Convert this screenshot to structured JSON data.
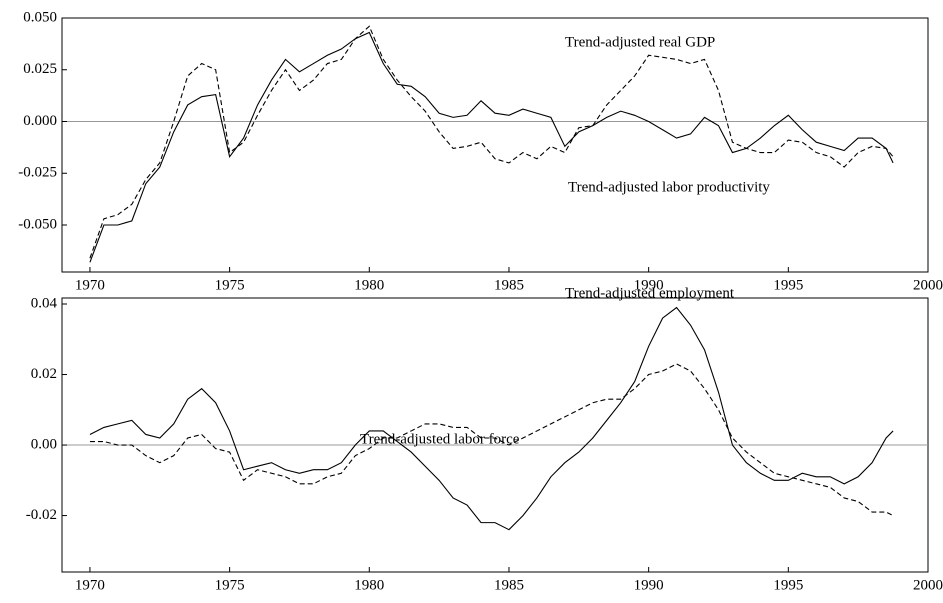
{
  "chart_data": [
    {
      "type": "line",
      "x": [
        1970,
        1970.5,
        1971,
        1971.5,
        1972,
        1972.5,
        1973,
        1973.5,
        1974,
        1974.5,
        1975,
        1975.5,
        1976,
        1976.5,
        1977,
        1977.5,
        1978,
        1978.5,
        1979,
        1979.5,
        1980,
        1980.5,
        1981,
        1981.5,
        1982,
        1982.5,
        1983,
        1983.5,
        1984,
        1984.5,
        1985,
        1985.5,
        1986,
        1986.5,
        1987,
        1987.5,
        1988,
        1988.5,
        1989,
        1989.5,
        1990,
        1990.5,
        1991,
        1991.5,
        1992,
        1992.5,
        1993,
        1993.5,
        1994,
        1994.5,
        1995,
        1995.5,
        1996,
        1996.5,
        1997,
        1997.5,
        1998,
        1998.5,
        1998.75
      ],
      "series": [
        {
          "name": "Trend-adjusted real GDP",
          "color": "#000000",
          "line_style": "dashed",
          "values": [
            -0.066,
            -0.047,
            -0.045,
            -0.04,
            -0.028,
            -0.02,
            0.0,
            0.022,
            0.028,
            0.025,
            -0.015,
            -0.01,
            0.003,
            0.015,
            0.025,
            0.015,
            0.02,
            0.028,
            0.03,
            0.04,
            0.046,
            0.03,
            0.02,
            0.012,
            0.005,
            -0.005,
            -0.013,
            -0.012,
            -0.01,
            -0.018,
            -0.02,
            -0.015,
            -0.018,
            -0.012,
            -0.015,
            -0.003,
            -0.002,
            0.008,
            0.015,
            0.022,
            0.032,
            0.031,
            0.03,
            0.028,
            0.03,
            0.015,
            -0.01,
            -0.013,
            -0.015,
            -0.015,
            -0.009,
            -0.01,
            -0.015,
            -0.017,
            -0.022,
            -0.015,
            -0.012,
            -0.013,
            -0.017
          ]
        },
        {
          "name": "Trend-adjusted labor productivity",
          "color": "#000000",
          "line_style": "solid",
          "values": [
            -0.068,
            -0.05,
            -0.05,
            -0.048,
            -0.03,
            -0.022,
            -0.005,
            0.008,
            0.012,
            0.013,
            -0.017,
            -0.008,
            0.008,
            0.02,
            0.03,
            0.024,
            0.028,
            0.032,
            0.035,
            0.04,
            0.043,
            0.028,
            0.018,
            0.017,
            0.012,
            0.004,
            0.002,
            0.003,
            0.01,
            0.004,
            0.003,
            0.006,
            0.004,
            0.002,
            -0.012,
            -0.005,
            -0.002,
            0.002,
            0.005,
            0.003,
            0.0,
            -0.004,
            -0.008,
            -0.006,
            0.002,
            -0.002,
            -0.015,
            -0.013,
            -0.008,
            -0.002,
            0.003,
            -0.004,
            -0.01,
            -0.012,
            -0.014,
            -0.008,
            -0.008,
            -0.013,
            -0.02
          ]
        }
      ],
      "xlim": [
        1969,
        2000
      ],
      "xticks": [
        1970,
        1975,
        1980,
        1985,
        1990,
        1995,
        2000
      ],
      "ylim": [
        -0.0727,
        0.05
      ],
      "yticks": [
        {
          "value": 0.05,
          "label": "0.050"
        },
        0.025,
        {
          "value": 0,
          "label": "0.000"
        },
        -0.025,
        {
          "value": -0.05,
          "label": "-0.050"
        }
      ],
      "zero_line": true
    },
    {
      "type": "line",
      "x": [
        1970,
        1970.5,
        1971,
        1971.5,
        1972,
        1972.5,
        1973,
        1973.5,
        1974,
        1974.5,
        1975,
        1975.5,
        1976,
        1976.5,
        1977,
        1977.5,
        1978,
        1978.5,
        1979,
        1979.5,
        1980,
        1980.5,
        1981,
        1981.5,
        1982,
        1982.5,
        1983,
        1983.5,
        1984,
        1984.5,
        1985,
        1985.5,
        1986,
        1986.5,
        1987,
        1987.5,
        1988,
        1988.5,
        1989,
        1989.5,
        1990,
        1990.5,
        1991,
        1991.5,
        1992,
        1992.5,
        1993,
        1993.5,
        1994,
        1994.5,
        1995,
        1995.5,
        1996,
        1996.5,
        1997,
        1997.5,
        1998,
        1998.5,
        1998.75
      ],
      "series": [
        {
          "name": "Trend-adjusted employment",
          "color": "#000000",
          "line_style": "solid",
          "values": [
            0.003,
            0.005,
            0.006,
            0.007,
            0.003,
            0.002,
            0.006,
            0.013,
            0.016,
            0.012,
            0.004,
            -0.007,
            -0.006,
            -0.005,
            -0.007,
            -0.008,
            -0.007,
            -0.007,
            -0.005,
            0.0,
            0.004,
            0.004,
            0.001,
            -0.002,
            -0.006,
            -0.01,
            -0.015,
            -0.017,
            -0.022,
            -0.022,
            -0.024,
            -0.02,
            -0.015,
            -0.009,
            -0.005,
            -0.002,
            0.002,
            0.007,
            0.012,
            0.018,
            0.028,
            0.036,
            0.039,
            0.034,
            0.027,
            0.015,
            0.0,
            -0.005,
            -0.008,
            -0.01,
            -0.01,
            -0.008,
            -0.009,
            -0.009,
            -0.011,
            -0.009,
            -0.005,
            0.002,
            0.004
          ]
        },
        {
          "name": "Trend-adjusted labor force",
          "color": "#000000",
          "line_style": "dashed",
          "values": [
            0.001,
            0.001,
            0.0,
            0.0,
            -0.003,
            -0.005,
            -0.003,
            0.002,
            0.003,
            -0.001,
            -0.002,
            -0.01,
            -0.007,
            -0.008,
            -0.009,
            -0.011,
            -0.011,
            -0.009,
            -0.008,
            -0.003,
            -0.001,
            0.002,
            0.002,
            0.004,
            0.006,
            0.006,
            0.005,
            0.005,
            0.002,
            0.002,
            0.0,
            0.002,
            0.004,
            0.006,
            0.008,
            0.01,
            0.012,
            0.013,
            0.013,
            0.016,
            0.02,
            0.021,
            0.023,
            0.021,
            0.016,
            0.01,
            0.002,
            -0.002,
            -0.005,
            -0.008,
            -0.009,
            -0.01,
            -0.011,
            -0.012,
            -0.015,
            -0.016,
            -0.019,
            -0.019,
            -0.02
          ]
        }
      ],
      "xlim": [
        1969,
        2000
      ],
      "xticks": [
        1970,
        1975,
        1980,
        1985,
        1990,
        1995,
        2000
      ],
      "ylim": [
        -0.036,
        0.0417
      ],
      "yticks": [
        0.04,
        0.02,
        {
          "value": 0,
          "label": "0.00"
        },
        -0.02
      ],
      "zero_line": true
    }
  ]
}
